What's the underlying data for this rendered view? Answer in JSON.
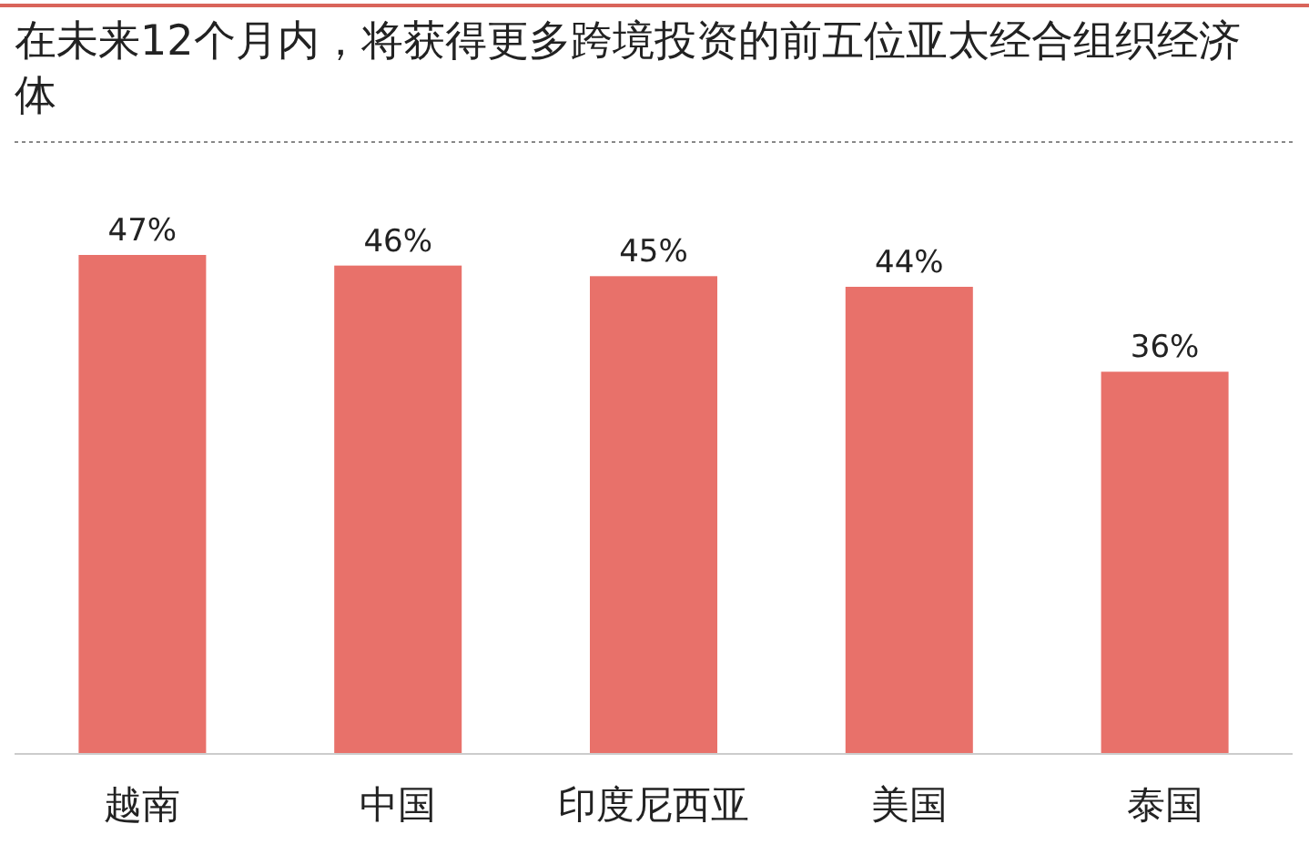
{
  "chart_data": {
    "type": "bar",
    "title": "在未来12个月内，将获得更多跨境投资的前五位亚太经合组织经济体",
    "categories": [
      "越南",
      "中国",
      "印度尼西亚",
      "美国",
      "泰国"
    ],
    "values": [
      47,
      46,
      45,
      44,
      36
    ],
    "color": "#e8716a",
    "value_labels": [
      "47%",
      "46%",
      "45%",
      "44%",
      "36%"
    ]
  }
}
